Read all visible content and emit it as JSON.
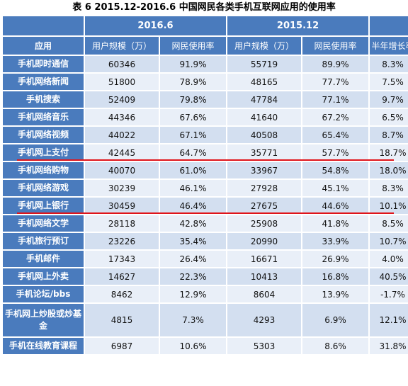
{
  "title": "表 6 2015.12-2016.6 中国网民各类手机互联网应用的使用率",
  "header": {
    "period_2016": "2016.6",
    "period_2015": "2015.12",
    "app": "应用",
    "users_2016": "用户规模（万）",
    "rate_2016": "网民使用率",
    "users_2015": "用户规模（万）",
    "rate_2015": "网民使用率",
    "growth": "半年增长率"
  },
  "rows": [
    {
      "app": "手机即时通信",
      "u16": "60346",
      "r16": "91.9%",
      "u15": "55719",
      "r15": "89.9%",
      "g": "8.3%"
    },
    {
      "app": "手机网络新闻",
      "u16": "51800",
      "r16": "78.9%",
      "u15": "48165",
      "r15": "77.7%",
      "g": "7.5%"
    },
    {
      "app": "手机搜索",
      "u16": "52409",
      "r16": "79.8%",
      "u15": "47784",
      "r15": "77.1%",
      "g": "9.7%"
    },
    {
      "app": "手机网络音乐",
      "u16": "44346",
      "r16": "67.6%",
      "u15": "41640",
      "r15": "67.2%",
      "g": "6.5%"
    },
    {
      "app": "手机网络视频",
      "u16": "44022",
      "r16": "67.1%",
      "u15": "40508",
      "r15": "65.4%",
      "g": "8.7%"
    },
    {
      "app": "手机网上支付",
      "u16": "42445",
      "r16": "64.7%",
      "u15": "35771",
      "r15": "57.7%",
      "g": "18.7%"
    },
    {
      "app": "手机网络购物",
      "u16": "40070",
      "r16": "61.0%",
      "u15": "33967",
      "r15": "54.8%",
      "g": "18.0%"
    },
    {
      "app": "手机网络游戏",
      "u16": "30239",
      "r16": "46.1%",
      "u15": "27928",
      "r15": "45.1%",
      "g": "8.3%"
    },
    {
      "app": "手机网上银行",
      "u16": "30459",
      "r16": "46.4%",
      "u15": "27675",
      "r15": "44.6%",
      "g": "10.1%"
    },
    {
      "app": "手机网络文学",
      "u16": "28118",
      "r16": "42.8%",
      "u15": "25908",
      "r15": "41.8%",
      "g": "8.5%"
    },
    {
      "app": "手机旅行预订",
      "u16": "23226",
      "r16": "35.4%",
      "u15": "20990",
      "r15": "33.9%",
      "g": "10.7%"
    },
    {
      "app": "手机邮件",
      "u16": "17343",
      "r16": "26.4%",
      "u15": "16671",
      "r15": "26.9%",
      "g": "4.0%"
    },
    {
      "app": "手机网上外卖",
      "u16": "14627",
      "r16": "22.3%",
      "u15": "10413",
      "r15": "16.8%",
      "g": "40.5%"
    },
    {
      "app": "手机论坛/bbs",
      "u16": "8462",
      "r16": "12.9%",
      "u15": "8604",
      "r15": "13.9%",
      "g": "-1.7%"
    },
    {
      "app": "手机网上炒股或炒基金",
      "u16": "4815",
      "r16": "7.3%",
      "u15": "4293",
      "r15": "6.9%",
      "g": "12.1%"
    },
    {
      "app": "手机在线教育课程",
      "u16": "6987",
      "r16": "10.6%",
      "u15": "5303",
      "r15": "8.6%",
      "g": "31.8%"
    }
  ],
  "highlight_color": "#e0141a",
  "header_color": "#4a7bbd"
}
